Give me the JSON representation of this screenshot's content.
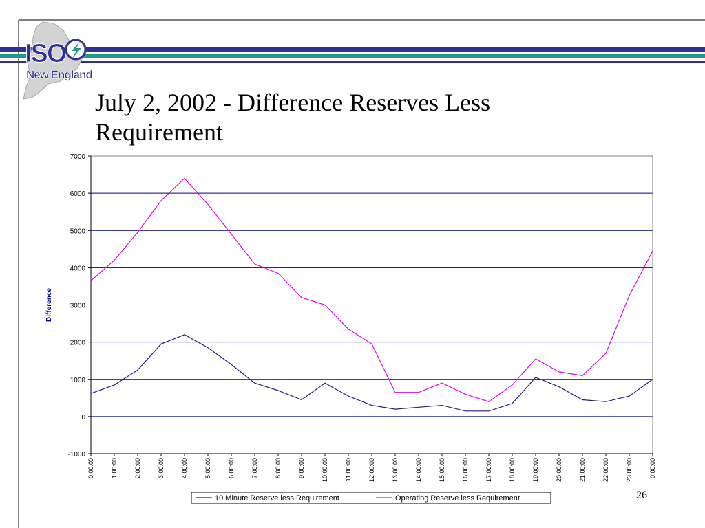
{
  "logo": {
    "mark": "ISO",
    "subtitle": "New England",
    "icon": "lightning-bolt-icon",
    "colors": {
      "navy": "#2e3192",
      "teal": "#1f9a8c",
      "map_gray": "#d3d3d3",
      "bolt": "#1f9a8c"
    }
  },
  "slide": {
    "title": "July 2, 2002 - Difference Reserves Less Requirement",
    "page_number": "26"
  },
  "chart_data": {
    "type": "line",
    "title": "",
    "xlabel": "",
    "ylabel": "Difference",
    "x": [
      "0:00:00",
      "1:00:00",
      "2:00:00",
      "3:00:00",
      "4:00:00",
      "5:00:00",
      "6:00:00",
      "7:00:00",
      "8:00:00",
      "9:00:00",
      "10:00:00",
      "11:00:00",
      "12:00:00",
      "13:00:00",
      "14:00:00",
      "15:00:00",
      "16:00:00",
      "17:00:00",
      "18:00:00",
      "19:00:00",
      "20:00:00",
      "21:00:00",
      "22:00:00",
      "23:00:00",
      "0:00:00"
    ],
    "ylim": [
      -1000,
      7000
    ],
    "yticks": [
      "7000",
      "6000",
      "5000",
      "4000",
      "3000",
      "2000",
      "1000",
      "0",
      "-1000"
    ],
    "grid": true,
    "legend": "bottom",
    "series": [
      {
        "name": "10 Minute Reserve less Requirement",
        "color": "#1f1f7a",
        "values": [
          620,
          850,
          1250,
          1950,
          2200,
          1850,
          1400,
          900,
          700,
          450,
          900,
          550,
          300,
          200,
          250,
          300,
          150,
          150,
          350,
          1050,
          800,
          450,
          400,
          550,
          1000
        ]
      },
      {
        "name": "Operating Reserve less Requirement",
        "color": "#e600e6",
        "values": [
          3650,
          4200,
          4950,
          5800,
          6400,
          5700,
          4900,
          4100,
          3850,
          3200,
          3000,
          2350,
          1950,
          650,
          650,
          900,
          600,
          400,
          850,
          1550,
          1200,
          1100,
          1700,
          3250,
          4450
        ]
      }
    ]
  }
}
